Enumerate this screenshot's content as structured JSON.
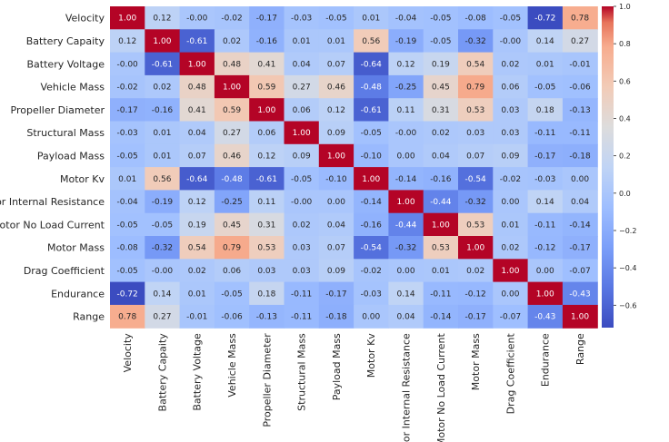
{
  "chart_data": {
    "type": "heatmap",
    "title": "",
    "labels": [
      "Velocity",
      "Battery Capaity",
      "Battery Voltage",
      "Vehicle Mass",
      "Propeller Diameter",
      "Structural Mass",
      "Payload Mass",
      "Motor Kv",
      "Motor Internal Resistance",
      "Motor No Load Current",
      "Motor Mass",
      "Drag Coefficient",
      "Endurance",
      "Range"
    ],
    "matrix": [
      [
        "1.00",
        "0.12",
        "-0.00",
        "-0.02",
        "-0.17",
        "-0.03",
        "-0.05",
        "0.01",
        "-0.04",
        "-0.05",
        "-0.08",
        "-0.05",
        "-0.72",
        "0.78"
      ],
      [
        "0.12",
        "1.00",
        "-0.61",
        "0.02",
        "-0.16",
        "0.01",
        "0.01",
        "0.56",
        "-0.19",
        "-0.05",
        "-0.32",
        "-0.00",
        "0.14",
        "0.27"
      ],
      [
        "-0.00",
        "-0.61",
        "1.00",
        "0.48",
        "0.41",
        "0.04",
        "0.07",
        "-0.64",
        "0.12",
        "0.19",
        "0.54",
        "0.02",
        "0.01",
        "-0.01"
      ],
      [
        "-0.02",
        "0.02",
        "0.48",
        "1.00",
        "0.59",
        "0.27",
        "0.46",
        "-0.48",
        "-0.25",
        "0.45",
        "0.79",
        "0.06",
        "-0.05",
        "-0.06"
      ],
      [
        "-0.17",
        "-0.16",
        "0.41",
        "0.59",
        "1.00",
        "0.06",
        "0.12",
        "-0.61",
        "0.11",
        "0.31",
        "0.53",
        "0.03",
        "0.18",
        "-0.13"
      ],
      [
        "-0.03",
        "0.01",
        "0.04",
        "0.27",
        "0.06",
        "1.00",
        "0.09",
        "-0.05",
        "-0.00",
        "0.02",
        "0.03",
        "0.03",
        "-0.11",
        "-0.11"
      ],
      [
        "-0.05",
        "0.01",
        "0.07",
        "0.46",
        "0.12",
        "0.09",
        "1.00",
        "-0.10",
        "0.00",
        "0.04",
        "0.07",
        "0.09",
        "-0.17",
        "-0.18"
      ],
      [
        "0.01",
        "0.56",
        "-0.64",
        "-0.48",
        "-0.61",
        "-0.05",
        "-0.10",
        "1.00",
        "-0.14",
        "-0.16",
        "-0.54",
        "-0.02",
        "-0.03",
        "0.00"
      ],
      [
        "-0.04",
        "-0.19",
        "0.12",
        "-0.25",
        "0.11",
        "-0.00",
        "0.00",
        "-0.14",
        "1.00",
        "-0.44",
        "-0.32",
        "0.00",
        "0.14",
        "0.04"
      ],
      [
        "-0.05",
        "-0.05",
        "0.19",
        "0.45",
        "0.31",
        "0.02",
        "0.04",
        "-0.16",
        "-0.44",
        "1.00",
        "0.53",
        "0.01",
        "-0.11",
        "-0.14"
      ],
      [
        "-0.08",
        "-0.32",
        "0.54",
        "0.79",
        "0.53",
        "0.03",
        "0.07",
        "-0.54",
        "-0.32",
        "0.53",
        "1.00",
        "0.02",
        "-0.12",
        "-0.17"
      ],
      [
        "-0.05",
        "-0.00",
        "0.02",
        "0.06",
        "0.03",
        "0.03",
        "0.09",
        "-0.02",
        "0.00",
        "0.01",
        "0.02",
        "1.00",
        "0.00",
        "-0.07"
      ],
      [
        "-0.72",
        "0.14",
        "0.01",
        "-0.05",
        "0.18",
        "-0.11",
        "-0.17",
        "-0.03",
        "0.14",
        "-0.11",
        "-0.12",
        "0.00",
        "1.00",
        "-0.43"
      ],
      [
        "0.78",
        "0.27",
        "-0.01",
        "-0.06",
        "-0.13",
        "-0.11",
        "-0.18",
        "0.00",
        "0.04",
        "-0.14",
        "-0.17",
        "-0.07",
        "-0.43",
        "1.00"
      ]
    ],
    "colormap": "coolwarm",
    "vmin": -0.72,
    "vmax": 1.0,
    "colorbar": {
      "ticks": [
        1.0,
        0.8,
        0.6,
        0.4,
        0.2,
        0.0,
        -0.2,
        -0.4,
        -0.6
      ],
      "tick_labels": [
        "1.0",
        "0.8",
        "0.6",
        "0.4",
        "0.2",
        "0.0",
        "−0.2",
        "−0.4",
        "−0.6"
      ]
    },
    "legend_position": "right"
  }
}
